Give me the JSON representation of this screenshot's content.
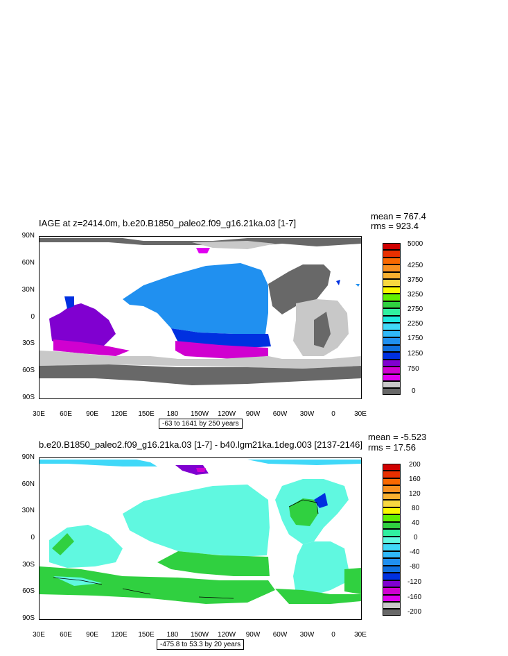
{
  "panels": [
    {
      "title": "IAGE at z=2414.0m, b.e20.B1850_paleo2.f09_g16.21ka.03 [1-7]",
      "mean": "mean = 767.4",
      "rms": "rms = 923.4",
      "range_note": "-63 to 1641 by 250 years",
      "colorbar": {
        "labels": [
          "5000",
          "4250",
          "3750",
          "3250",
          "2750",
          "2250",
          "1750",
          "1250",
          "750",
          "0"
        ],
        "colors": [
          "#d00000",
          "#e83000",
          "#f86800",
          "#f89020",
          "#f8b030",
          "#f8d840",
          "#f8f800",
          "#60f000",
          "#30d040",
          "#30f0a0",
          "#20e8e0",
          "#40d8f8",
          "#30b8f8",
          "#2090f0",
          "#1070e0",
          "#0030e0",
          "#8000d0",
          "#d000d0",
          "#e000f0",
          "#c8c8c8",
          "#686868"
        ]
      }
    },
    {
      "title": "b.e20.B1850_paleo2.f09_g16.21ka.03 [1-7] - b40.lgm21ka.1deg.003 [2137-2146]",
      "mean": "mean = -5.523",
      "rms": "rms = 17.56",
      "range_note": "-475.8 to 53.3 by 20 years",
      "colorbar": {
        "labels": [
          "200",
          "160",
          "120",
          "80",
          "40",
          "0",
          "-40",
          "-80",
          "-120",
          "-160",
          "-200"
        ],
        "colors": [
          "#d00000",
          "#e83000",
          "#f86800",
          "#f89020",
          "#f8b030",
          "#f8d840",
          "#f8f800",
          "#60f000",
          "#30d040",
          "#30f0a0",
          "#60f8e0",
          "#40d8f8",
          "#30b8f8",
          "#2090f0",
          "#1070e0",
          "#0030e0",
          "#8000d0",
          "#d000d0",
          "#e000f0",
          "#c8c8c8",
          "#686868"
        ]
      }
    }
  ],
  "axes": {
    "lat_labels": [
      "90N",
      "60N",
      "30N",
      "0",
      "30S",
      "60S",
      "90S"
    ],
    "lon_labels": [
      "30E",
      "60E",
      "90E",
      "120E",
      "150E",
      "180",
      "150W",
      "120W",
      "90W",
      "60W",
      "30W",
      "0",
      "30E"
    ]
  }
}
